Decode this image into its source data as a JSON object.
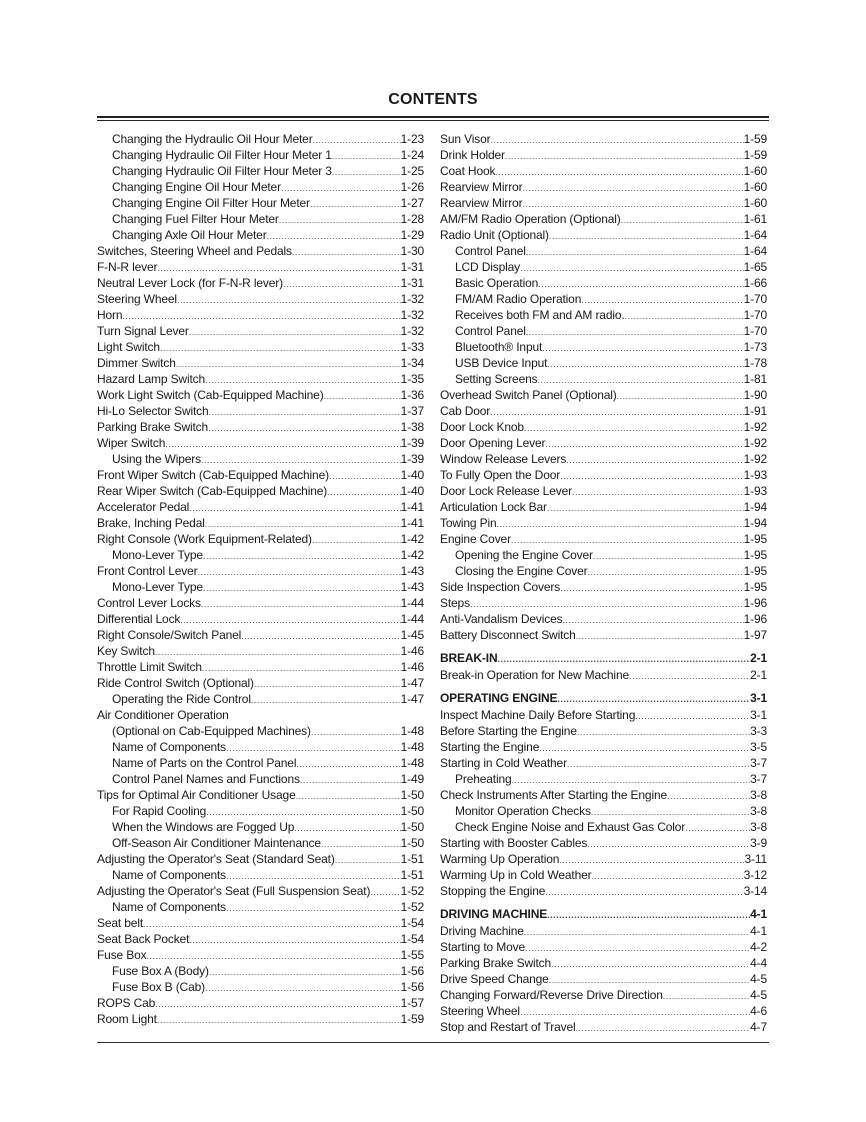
{
  "title": "CONTENTS",
  "left": [
    {
      "t": "Changing the Hydraulic Oil Hour Meter",
      "p": "1-23",
      "lvl": 1
    },
    {
      "t": "Changing Hydraulic Oil Filter Hour Meter 1",
      "p": "1-24",
      "lvl": 1
    },
    {
      "t": "Changing Hydraulic Oil Filter Hour Meter 3",
      "p": "1-25",
      "lvl": 1
    },
    {
      "t": "Changing Engine Oil Hour Meter",
      "p": "1-26",
      "lvl": 1
    },
    {
      "t": "Changing Engine Oil Filter Hour Meter",
      "p": "1-27",
      "lvl": 1
    },
    {
      "t": "Changing Fuel Filter Hour Meter",
      "p": "1-28",
      "lvl": 1
    },
    {
      "t": "Changing Axle Oil Hour Meter",
      "p": "1-29",
      "lvl": 1
    },
    {
      "t": "Switches, Steering Wheel and Pedals",
      "p": "1-30",
      "lvl": 0
    },
    {
      "t": "F-N-R lever",
      "p": "1-31",
      "lvl": 0
    },
    {
      "t": "Neutral Lever Lock (for F-N-R lever)",
      "p": "1-31",
      "lvl": 0
    },
    {
      "t": "Steering Wheel",
      "p": "1-32",
      "lvl": 0
    },
    {
      "t": "Horn",
      "p": "1-32",
      "lvl": 0
    },
    {
      "t": "Turn Signal Lever",
      "p": "1-32",
      "lvl": 0
    },
    {
      "t": "Light Switch",
      "p": "1-33",
      "lvl": 0
    },
    {
      "t": "Dimmer Switch",
      "p": "1-34",
      "lvl": 0
    },
    {
      "t": "Hazard Lamp Switch",
      "p": "1-35",
      "lvl": 0
    },
    {
      "t": "Work Light Switch (Cab-Equipped Machine)",
      "p": "1-36",
      "lvl": 0
    },
    {
      "t": "Hi-Lo Selector Switch",
      "p": "1-37",
      "lvl": 0
    },
    {
      "t": "Parking Brake Switch",
      "p": "1-38",
      "lvl": 0
    },
    {
      "t": "Wiper Switch",
      "p": "1-39",
      "lvl": 0
    },
    {
      "t": "Using the Wipers",
      "p": "1-39",
      "lvl": 1
    },
    {
      "t": "Front Wiper Switch (Cab-Equipped Machine)",
      "p": "1-40",
      "lvl": 0
    },
    {
      "t": "Rear Wiper Switch (Cab-Equipped Machine)",
      "p": "1-40",
      "lvl": 0
    },
    {
      "t": "Accelerator Pedal",
      "p": "1-41",
      "lvl": 0
    },
    {
      "t": "Brake, Inching Pedal",
      "p": "1-41",
      "lvl": 0
    },
    {
      "t": "Right Console (Work Equipment-Related)",
      "p": "1-42",
      "lvl": 0
    },
    {
      "t": "Mono-Lever Type",
      "p": "1-42",
      "lvl": 1
    },
    {
      "t": "Front Control Lever",
      "p": "1-43",
      "lvl": 0
    },
    {
      "t": "Mono-Lever Type",
      "p": "1-43",
      "lvl": 1
    },
    {
      "t": "Control Lever Locks",
      "p": "1-44",
      "lvl": 0
    },
    {
      "t": "Differential Lock",
      "p": "1-44",
      "lvl": 0
    },
    {
      "t": "Right Console/Switch Panel",
      "p": "1-45",
      "lvl": 0
    },
    {
      "t": "Key Switch",
      "p": "1-46",
      "lvl": 0
    },
    {
      "t": "Throttle Limit Switch",
      "p": "1-46",
      "lvl": 0
    },
    {
      "t": "Ride Control Switch (Optional)",
      "p": "1-47",
      "lvl": 0
    },
    {
      "t": "Operating the Ride Control",
      "p": "1-47",
      "lvl": 1
    },
    {
      "t": "Air Conditioner Operation",
      "p": "",
      "lvl": 0
    },
    {
      "t": "(Optional on Cab-Equipped Machines)",
      "p": "1-48",
      "lvl": 1
    },
    {
      "t": "Name of Components",
      "p": "1-48",
      "lvl": 1
    },
    {
      "t": "Name of Parts on the Control Panel",
      "p": "1-48",
      "lvl": 1
    },
    {
      "t": "Control Panel Names and Functions",
      "p": "1-49",
      "lvl": 1
    },
    {
      "t": "Tips for Optimal Air Conditioner Usage",
      "p": "1-50",
      "lvl": 0
    },
    {
      "t": "For Rapid Cooling",
      "p": "1-50",
      "lvl": 1
    },
    {
      "t": "When the Windows are Fogged Up",
      "p": "1-50",
      "lvl": 1
    },
    {
      "t": "Off-Season Air Conditioner Maintenance",
      "p": "1-50",
      "lvl": 1
    },
    {
      "t": "Adjusting the Operator's Seat (Standard Seat)",
      "p": "1-51",
      "lvl": 0
    },
    {
      "t": "Name of Components",
      "p": "1-51",
      "lvl": 1
    },
    {
      "t": "Adjusting the Operator's Seat (Full Suspension Seat)",
      "p": "1-52",
      "lvl": 0
    },
    {
      "t": "Name of Components",
      "p": "1-52",
      "lvl": 1
    },
    {
      "t": "Seat belt",
      "p": "1-54",
      "lvl": 0
    },
    {
      "t": "Seat Back Pocket",
      "p": "1-54",
      "lvl": 0
    },
    {
      "t": "Fuse Box",
      "p": "1-55",
      "lvl": 0
    },
    {
      "t": "Fuse Box A (Body)",
      "p": "1-56",
      "lvl": 1
    },
    {
      "t": "Fuse Box B (Cab)",
      "p": "1-56",
      "lvl": 1
    },
    {
      "t": "ROPS Cab",
      "p": "1-57",
      "lvl": 0
    },
    {
      "t": "Room Light",
      "p": "1-59",
      "lvl": 0
    }
  ],
  "right": [
    {
      "t": "Sun Visor",
      "p": "1-59",
      "lvl": 0
    },
    {
      "t": "Drink Holder",
      "p": "1-59",
      "lvl": 0
    },
    {
      "t": "Coat Hook",
      "p": "1-60",
      "lvl": 0
    },
    {
      "t": "Rearview Mirror",
      "p": "1-60",
      "lvl": 0
    },
    {
      "t": "Rearview Mirror",
      "p": "1-60",
      "lvl": 0
    },
    {
      "t": "AM/FM Radio Operation (Optional)",
      "p": "1-61",
      "lvl": 0
    },
    {
      "t": "Radio Unit (Optional)",
      "p": "1-64",
      "lvl": 0
    },
    {
      "t": "Control Panel",
      "p": "1-64",
      "lvl": 1
    },
    {
      "t": "LCD Display",
      "p": "1-65",
      "lvl": 1
    },
    {
      "t": "Basic Operation",
      "p": "1-66",
      "lvl": 1
    },
    {
      "t": "FM/AM Radio Operation",
      "p": "1-70",
      "lvl": 1
    },
    {
      "t": "Receives both FM and AM radio.",
      "p": "1-70",
      "lvl": 1
    },
    {
      "t": "Control Panel",
      "p": "1-70",
      "lvl": 1
    },
    {
      "t": "Bluetooth® Input",
      "p": "1-73",
      "lvl": 1
    },
    {
      "t": "USB Device Input",
      "p": "1-78",
      "lvl": 1
    },
    {
      "t": "Setting Screens",
      "p": "1-81",
      "lvl": 1
    },
    {
      "t": "Overhead Switch Panel (Optional)",
      "p": "1-90",
      "lvl": 0
    },
    {
      "t": "Cab Door",
      "p": "1-91",
      "lvl": 0
    },
    {
      "t": "Door Lock Knob",
      "p": "1-92",
      "lvl": 0
    },
    {
      "t": "Door Opening Lever",
      "p": "1-92",
      "lvl": 0
    },
    {
      "t": "Window Release Levers",
      "p": "1-92",
      "lvl": 0
    },
    {
      "t": "To Fully Open the Door",
      "p": "1-93",
      "lvl": 0
    },
    {
      "t": "Door Lock Release Lever",
      "p": "1-93",
      "lvl": 0
    },
    {
      "t": "Articulation Lock Bar",
      "p": "1-94",
      "lvl": 0
    },
    {
      "t": "Towing Pin",
      "p": "1-94",
      "lvl": 0
    },
    {
      "t": "Engine Cover",
      "p": "1-95",
      "lvl": 0
    },
    {
      "t": "Opening the Engine Cover",
      "p": "1-95",
      "lvl": 1
    },
    {
      "t": "Closing the Engine Cover",
      "p": "1-95",
      "lvl": 1
    },
    {
      "t": "Side Inspection Covers",
      "p": "1-95",
      "lvl": 0
    },
    {
      "t": "Steps",
      "p": "1-96",
      "lvl": 0
    },
    {
      "t": "Anti-Vandalism Devices",
      "p": "1-96",
      "lvl": 0
    },
    {
      "t": "Battery Disconnect Switch",
      "p": "1-97",
      "lvl": 0
    },
    {
      "t": "BREAK-IN",
      "p": "2-1",
      "lvl": "head"
    },
    {
      "t": "Break-in Operation for New Machine",
      "p": "2-1",
      "lvl": 0
    },
    {
      "t": "OPERATING ENGINE",
      "p": "3-1",
      "lvl": "head"
    },
    {
      "t": "Inspect Machine Daily Before Starting",
      "p": "3-1",
      "lvl": 0
    },
    {
      "t": "Before Starting the Engine",
      "p": "3-3",
      "lvl": 0
    },
    {
      "t": "Starting the Engine",
      "p": "3-5",
      "lvl": 0
    },
    {
      "t": "Starting in Cold Weather",
      "p": "3-7",
      "lvl": 0
    },
    {
      "t": "Preheating",
      "p": "3-7",
      "lvl": 1
    },
    {
      "t": "Check Instruments After Starting the Engine",
      "p": "3-8",
      "lvl": 0
    },
    {
      "t": "Monitor Operation Checks",
      "p": "3-8",
      "lvl": 1
    },
    {
      "t": "Check Engine Noise and Exhaust Gas Color",
      "p": "3-8",
      "lvl": 1
    },
    {
      "t": "Starting with Booster Cables",
      "p": "3-9",
      "lvl": 0
    },
    {
      "t": "Warming Up Operation",
      "p": "3-11",
      "lvl": 0
    },
    {
      "t": "Warming Up in Cold Weather",
      "p": "3-12",
      "lvl": 0
    },
    {
      "t": "Stopping the Engine",
      "p": "3-14",
      "lvl": 0
    },
    {
      "t": "DRIVING MACHINE",
      "p": "4-1",
      "lvl": "head"
    },
    {
      "t": "Driving Machine",
      "p": "4-1",
      "lvl": 0
    },
    {
      "t": "Starting to Move",
      "p": "4-2",
      "lvl": 0
    },
    {
      "t": "Parking Brake Switch",
      "p": "4-4",
      "lvl": 0
    },
    {
      "t": "Drive Speed Change",
      "p": "4-5",
      "lvl": 0
    },
    {
      "t": "Changing Forward/Reverse Drive Direction",
      "p": "4-5",
      "lvl": 0
    },
    {
      "t": "Steering Wheel",
      "p": "4-6",
      "lvl": 0
    },
    {
      "t": "Stop and Restart of Travel",
      "p": "4-7",
      "lvl": 0
    }
  ]
}
